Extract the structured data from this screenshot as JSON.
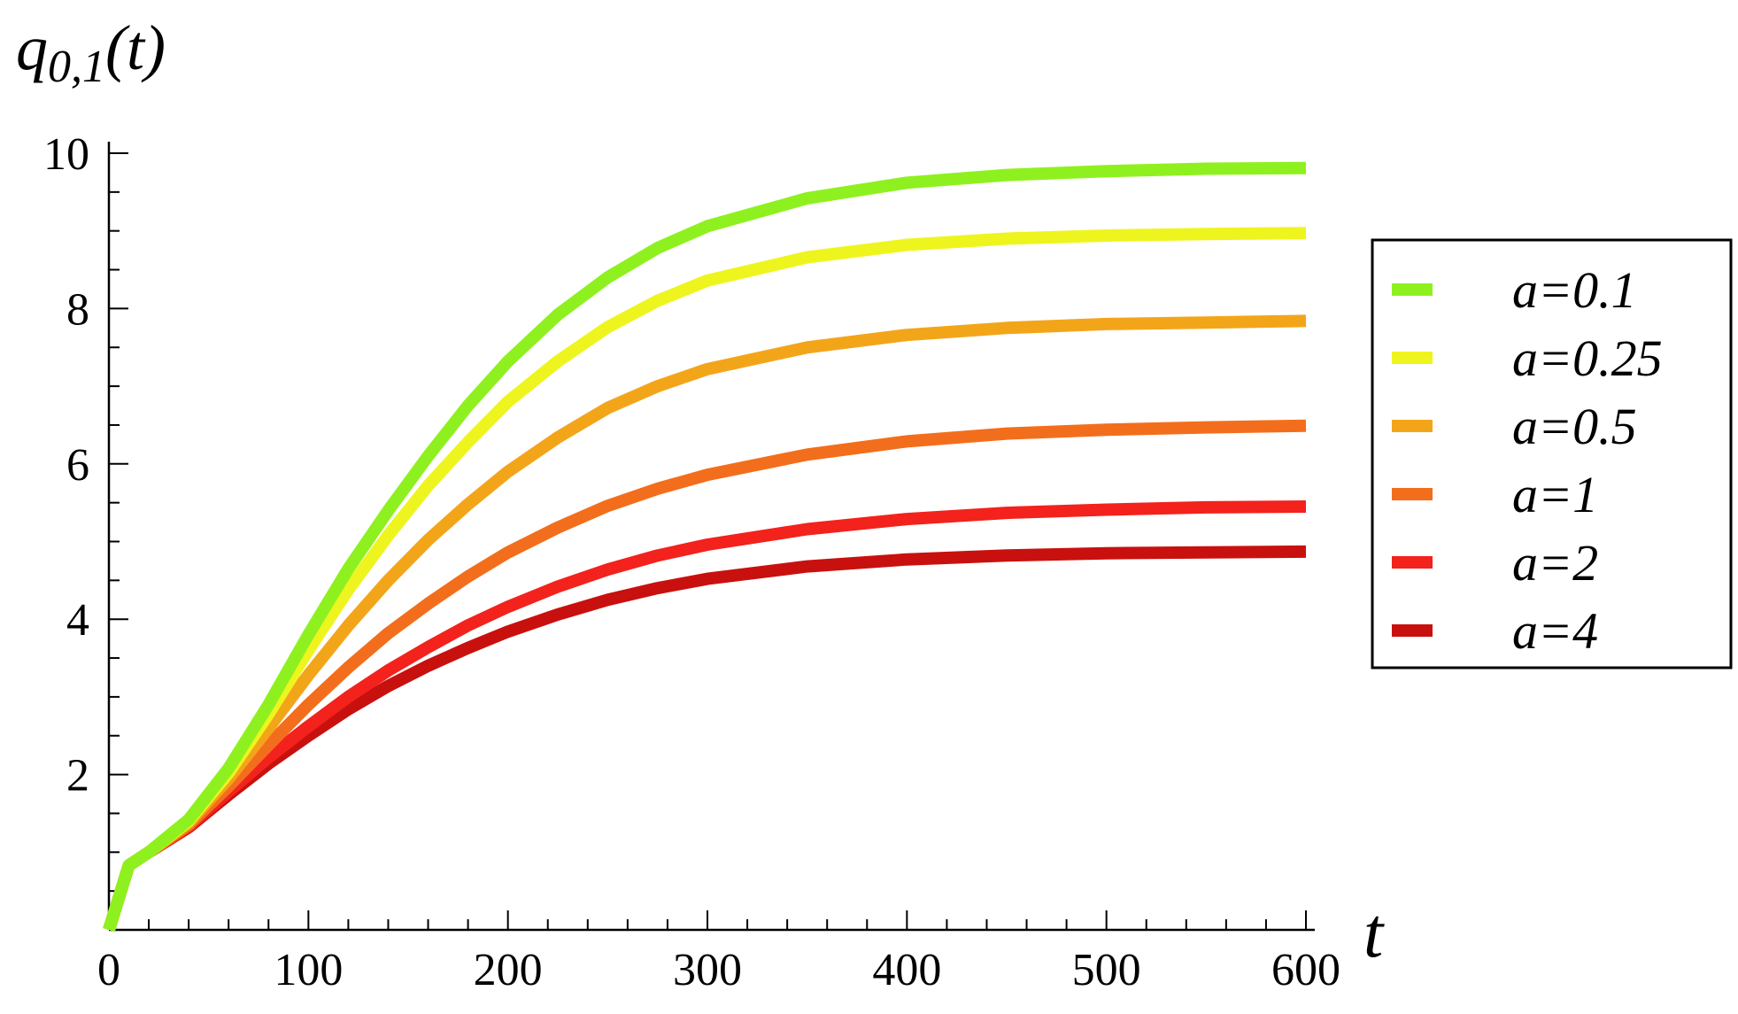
{
  "chart_data": {
    "type": "line",
    "xlabel": "t",
    "ylabel_main": "q",
    "ylabel_sub": "0,1",
    "ylabel_tail": "(t)",
    "xlim": [
      0,
      600
    ],
    "ylim": [
      0,
      10
    ],
    "x_ticks": [
      "0",
      "100",
      "200",
      "300",
      "400",
      "500",
      "600"
    ],
    "y_ticks": [
      "2",
      "4",
      "6",
      "8",
      "10"
    ],
    "grid": false,
    "legend_position": "right",
    "x": [
      0,
      10,
      20,
      40,
      60,
      80,
      100,
      120,
      140,
      160,
      180,
      200,
      225,
      250,
      275,
      300,
      350,
      400,
      450,
      500,
      550,
      600
    ],
    "series": [
      {
        "name": "a=0.1",
        "color": "#8EF11F",
        "values": [
          0,
          0.83,
          1.0,
          1.42,
          2.08,
          2.9,
          3.8,
          4.65,
          5.4,
          6.1,
          6.75,
          7.32,
          7.92,
          8.4,
          8.78,
          9.06,
          9.42,
          9.62,
          9.72,
          9.77,
          9.8,
          9.81
        ]
      },
      {
        "name": "a=0.25",
        "color": "#EEF51E",
        "values": [
          0,
          0.83,
          1.0,
          1.4,
          2.02,
          2.78,
          3.6,
          4.38,
          5.08,
          5.72,
          6.28,
          6.8,
          7.32,
          7.76,
          8.1,
          8.36,
          8.66,
          8.82,
          8.9,
          8.94,
          8.96,
          8.97
        ]
      },
      {
        "name": "a=0.5",
        "color": "#F3A51A",
        "values": [
          0,
          0.83,
          1.0,
          1.38,
          1.95,
          2.6,
          3.28,
          3.92,
          4.5,
          5.02,
          5.48,
          5.9,
          6.34,
          6.72,
          7.0,
          7.22,
          7.5,
          7.66,
          7.75,
          7.8,
          7.82,
          7.84
        ]
      },
      {
        "name": "a=1",
        "color": "#F36E1C",
        "values": [
          0,
          0.83,
          1.0,
          1.35,
          1.85,
          2.38,
          2.9,
          3.38,
          3.82,
          4.2,
          4.55,
          4.86,
          5.18,
          5.46,
          5.68,
          5.86,
          6.12,
          6.29,
          6.39,
          6.44,
          6.47,
          6.49
        ]
      },
      {
        "name": "a=2",
        "color": "#F3221C",
        "values": [
          0,
          0.83,
          1.0,
          1.33,
          1.78,
          2.22,
          2.62,
          3.0,
          3.34,
          3.64,
          3.92,
          4.16,
          4.42,
          4.64,
          4.82,
          4.96,
          5.16,
          5.29,
          5.37,
          5.41,
          5.44,
          5.45
        ]
      },
      {
        "name": "a=4",
        "color": "#C8110E",
        "values": [
          0,
          0.83,
          1.0,
          1.32,
          1.74,
          2.14,
          2.5,
          2.84,
          3.14,
          3.4,
          3.63,
          3.84,
          4.06,
          4.25,
          4.4,
          4.52,
          4.68,
          4.77,
          4.82,
          4.85,
          4.86,
          4.87
        ]
      }
    ]
  }
}
